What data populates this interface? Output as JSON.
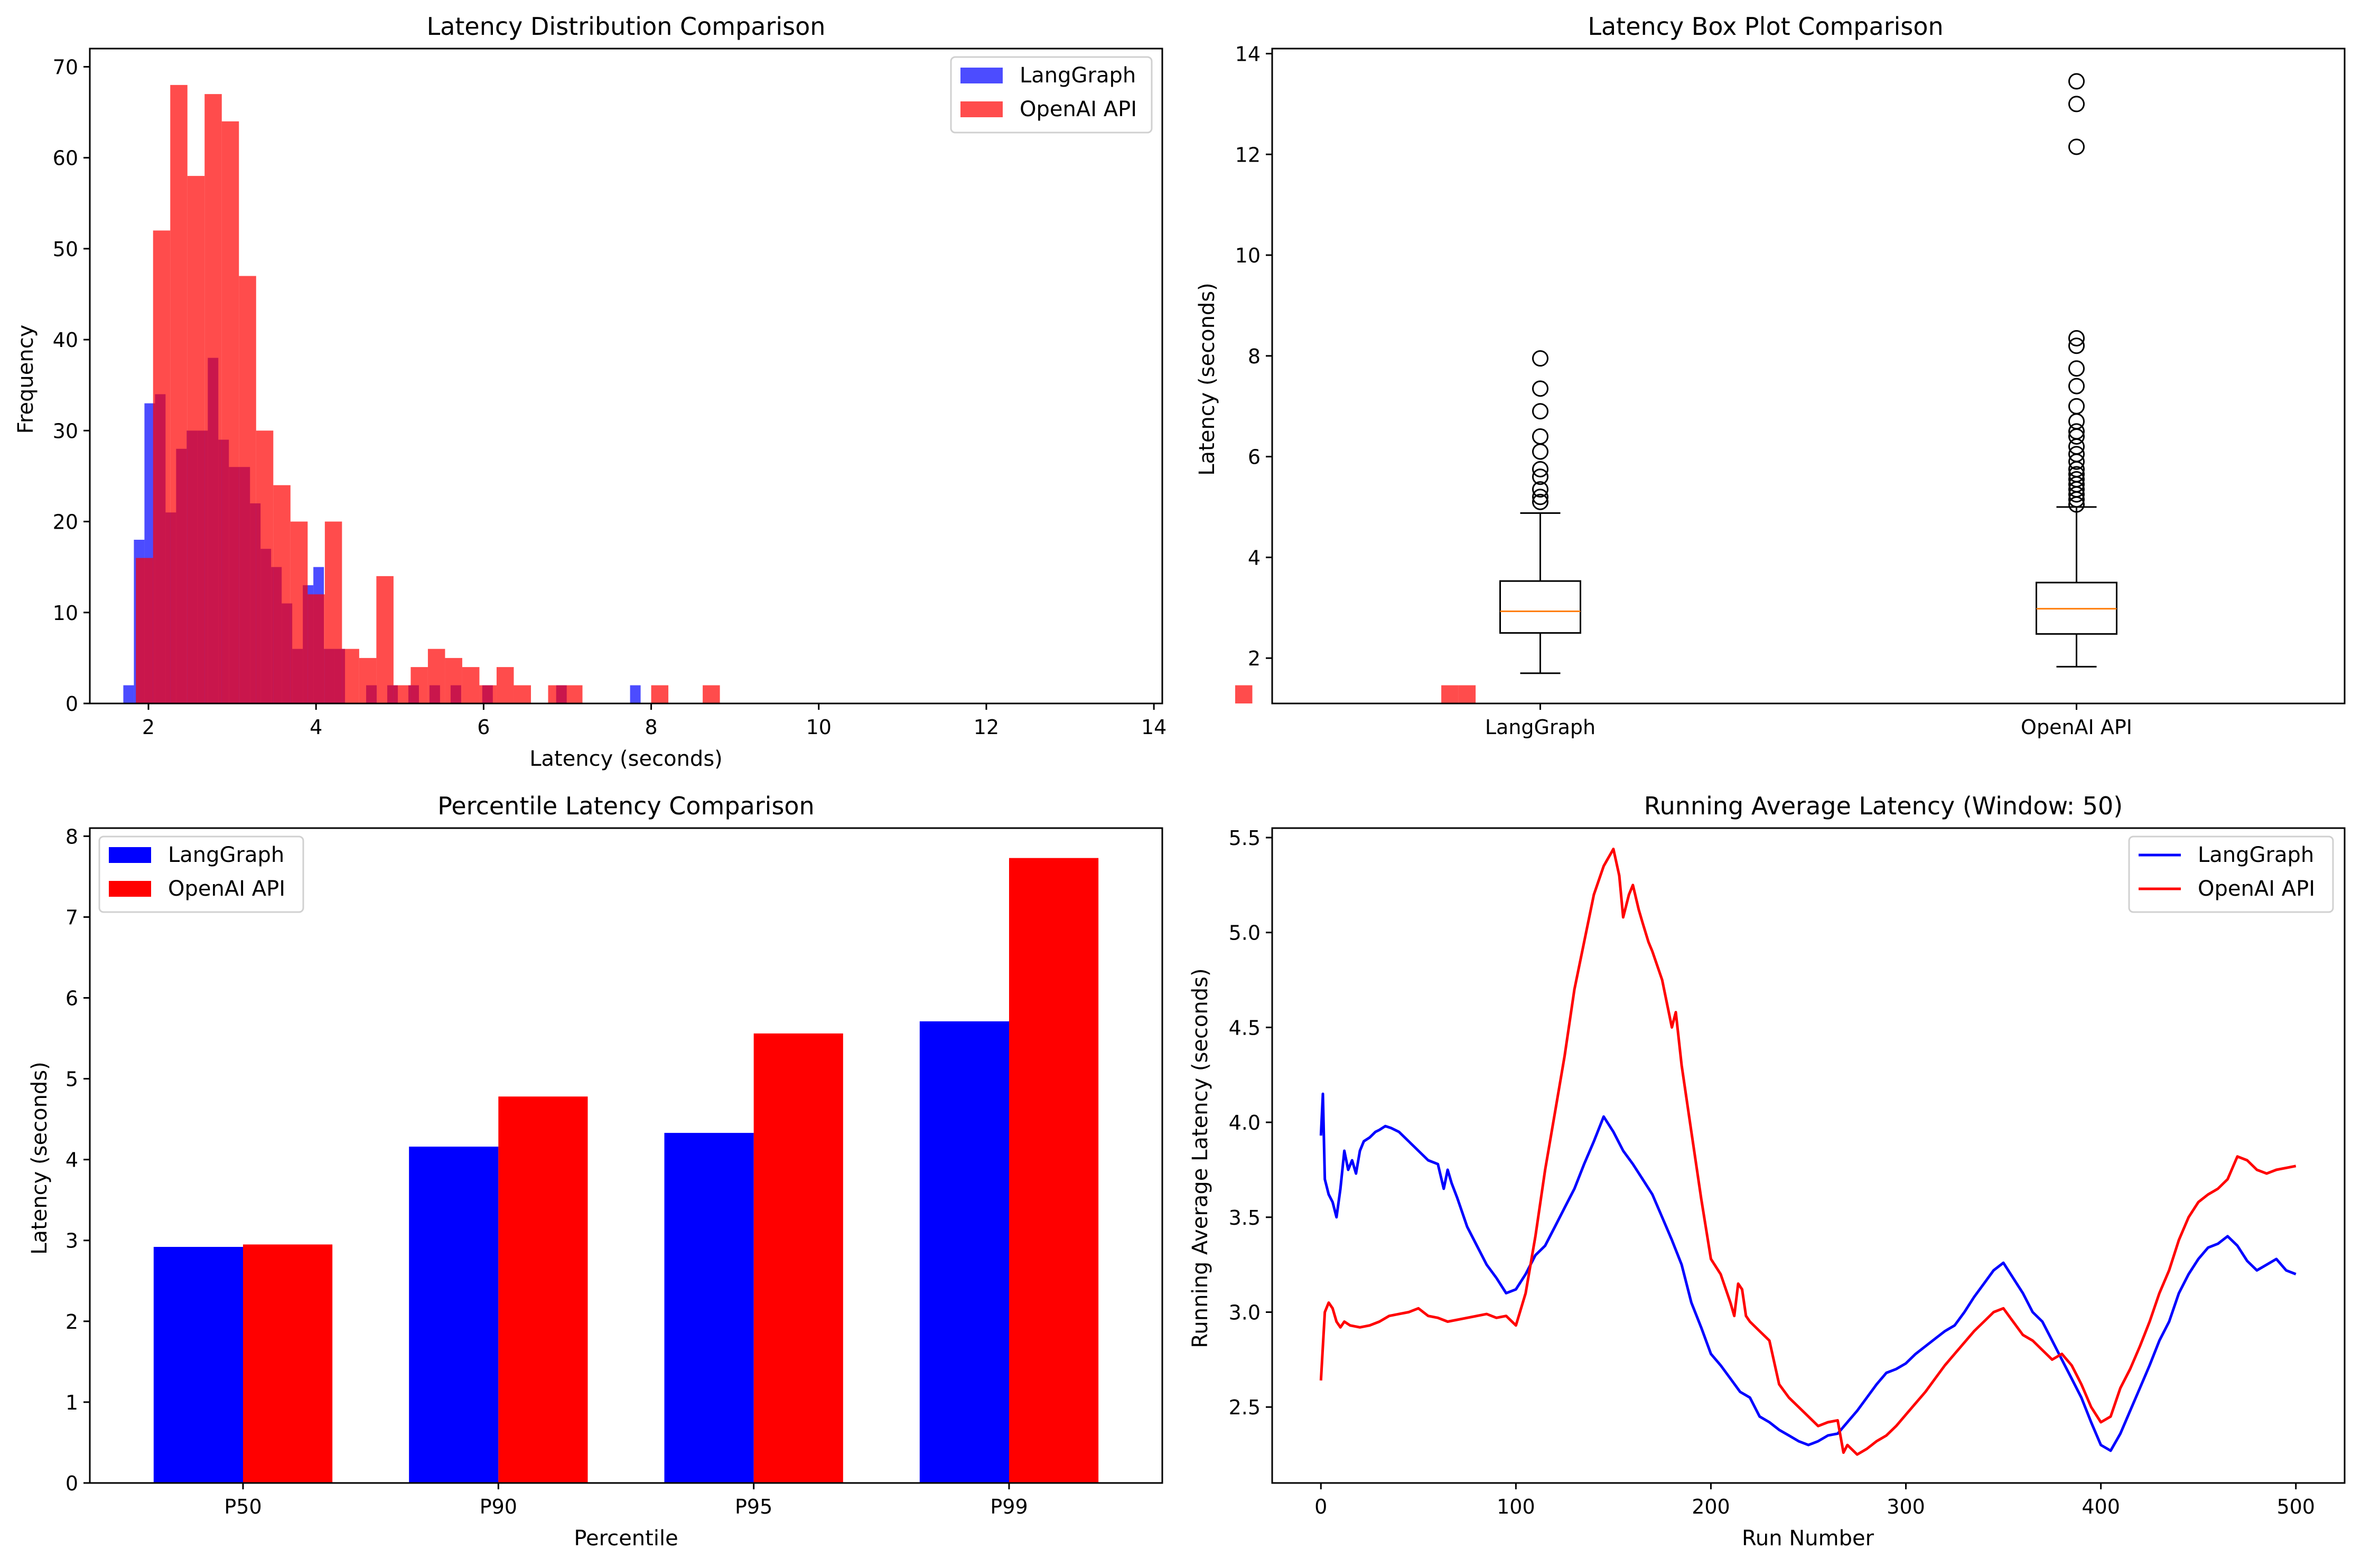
{
  "colors": {
    "langgraph": "#0000ff",
    "openai": "#ff0000",
    "median": "#ff7f0e"
  },
  "chart_data": [
    {
      "id": "hist",
      "type": "bar",
      "title": "Latency Distribution Comparison",
      "xlabel": "Latency (seconds)",
      "ylabel": "Frequency",
      "xlim": [
        1.3,
        14.1
      ],
      "ylim": [
        0,
        72
      ],
      "xticks": [
        2,
        4,
        6,
        8,
        10,
        12,
        14
      ],
      "yticks": [
        0,
        10,
        20,
        30,
        40,
        50,
        60,
        70
      ],
      "legend": "top-right",
      "alpha": 0.7,
      "series": [
        {
          "name": "LangGraph",
          "bin_start": 1.7,
          "bin_width": 0.126,
          "counts": [
            2,
            18,
            33,
            34,
            21,
            28,
            30,
            30,
            38,
            29,
            26,
            26,
            22,
            17,
            15,
            11,
            6,
            13,
            15,
            6,
            6,
            0,
            0,
            2,
            0,
            2,
            0,
            2,
            0,
            2,
            0,
            2,
            0,
            0,
            2,
            0,
            0,
            0,
            0,
            0,
            0,
            2,
            0,
            0,
            0,
            0,
            0,
            0,
            2
          ]
        },
        {
          "name": "OpenAI API",
          "bin_start": 1.85,
          "bin_width": 0.205,
          "counts": [
            16,
            52,
            68,
            58,
            67,
            64,
            47,
            30,
            24,
            20,
            12,
            20,
            6,
            5,
            14,
            2,
            4,
            6,
            5,
            4,
            2,
            4,
            2,
            0,
            2,
            2,
            0,
            0,
            0,
            0,
            2,
            0,
            0,
            2,
            0,
            0,
            0,
            0,
            0,
            0,
            0,
            0,
            0,
            0,
            0,
            0,
            0,
            0,
            0,
            0,
            0,
            0,
            0,
            0,
            0,
            0,
            0,
            0,
            0,
            0,
            0,
            0,
            0,
            0,
            2,
            0,
            0,
            0,
            0,
            0,
            0,
            0,
            0,
            0,
            0,
            0,
            2,
            2,
            0
          ]
        }
      ]
    },
    {
      "id": "box",
      "type": "box",
      "title": "Latency Box Plot Comparison",
      "xlabel": "",
      "ylabel": "Latency (seconds)",
      "ylim": [
        1.1,
        14.1
      ],
      "yticks": [
        2,
        4,
        6,
        8,
        10,
        12,
        14
      ],
      "categories": [
        "LangGraph",
        "OpenAI API"
      ],
      "boxes": [
        {
          "whisker_low": 1.7,
          "q1": 2.5,
          "median": 2.93,
          "q3": 3.53,
          "whisker_high": 4.88,
          "fliers": [
            5.1,
            5.2,
            5.35,
            5.6,
            5.75,
            6.1,
            6.4,
            6.9,
            7.35,
            7.95
          ]
        },
        {
          "whisker_low": 1.83,
          "q1": 2.48,
          "median": 2.98,
          "q3": 3.5,
          "whisker_high": 5.0,
          "fliers": [
            5.05,
            5.15,
            5.25,
            5.35,
            5.45,
            5.55,
            5.65,
            5.75,
            5.9,
            6.05,
            6.2,
            6.4,
            6.5,
            6.7,
            7.0,
            7.4,
            7.75,
            8.2,
            8.35,
            12.15,
            13.0,
            13.45
          ]
        }
      ]
    },
    {
      "id": "pct",
      "type": "bar",
      "title": "Percentile Latency Comparison",
      "xlabel": "Percentile",
      "ylabel": "Latency (seconds)",
      "ylim": [
        0,
        8.1
      ],
      "yticks": [
        0,
        1,
        2,
        3,
        4,
        5,
        6,
        7,
        8
      ],
      "categories": [
        "P50",
        "P90",
        "P95",
        "P99"
      ],
      "legend": "top-left",
      "series": [
        {
          "name": "LangGraph",
          "values": [
            2.92,
            4.16,
            4.33,
            5.71
          ]
        },
        {
          "name": "OpenAI API",
          "values": [
            2.95,
            4.78,
            5.56,
            7.73
          ]
        }
      ]
    },
    {
      "id": "run",
      "type": "line",
      "title": "Running Average Latency (Window: 50)",
      "xlabel": "Run Number",
      "ylabel": "Running Average Latency (seconds)",
      "xlim": [
        -25,
        525
      ],
      "ylim": [
        2.1,
        5.55
      ],
      "xticks": [
        0,
        100,
        200,
        300,
        400,
        500
      ],
      "yticks": [
        2.5,
        3.0,
        3.5,
        4.0,
        4.5,
        5.0,
        5.5
      ],
      "legend": "top-right",
      "series": [
        {
          "name": "LangGraph",
          "x": [
            0,
            1,
            2,
            4,
            6,
            8,
            10,
            12,
            14,
            16,
            18,
            20,
            22,
            25,
            28,
            30,
            33,
            36,
            40,
            45,
            50,
            55,
            60,
            63,
            65,
            67,
            70,
            75,
            80,
            85,
            90,
            95,
            100,
            105,
            110,
            115,
            120,
            125,
            130,
            135,
            140,
            145,
            150,
            155,
            160,
            165,
            170,
            175,
            180,
            185,
            190,
            195,
            200,
            205,
            210,
            215,
            220,
            225,
            230,
            235,
            240,
            245,
            250,
            255,
            260,
            265,
            270,
            275,
            280,
            285,
            290,
            295,
            300,
            305,
            310,
            315,
            320,
            325,
            330,
            335,
            340,
            345,
            350,
            355,
            360,
            365,
            370,
            375,
            380,
            385,
            390,
            395,
            400,
            405,
            410,
            415,
            420,
            425,
            430,
            435,
            440,
            445,
            450,
            455,
            460,
            465,
            470,
            475,
            480,
            485,
            490,
            495,
            500
          ],
          "y": [
            3.93,
            4.15,
            3.7,
            3.62,
            3.58,
            3.5,
            3.65,
            3.85,
            3.75,
            3.8,
            3.73,
            3.85,
            3.9,
            3.92,
            3.95,
            3.96,
            3.98,
            3.97,
            3.95,
            3.9,
            3.85,
            3.8,
            3.78,
            3.65,
            3.75,
            3.68,
            3.6,
            3.45,
            3.35,
            3.25,
            3.18,
            3.1,
            3.12,
            3.2,
            3.3,
            3.35,
            3.45,
            3.55,
            3.65,
            3.78,
            3.9,
            4.03,
            3.95,
            3.85,
            3.78,
            3.7,
            3.62,
            3.5,
            3.38,
            3.25,
            3.05,
            2.92,
            2.78,
            2.72,
            2.65,
            2.58,
            2.55,
            2.45,
            2.42,
            2.38,
            2.35,
            2.32,
            2.3,
            2.32,
            2.35,
            2.36,
            2.42,
            2.48,
            2.55,
            2.62,
            2.68,
            2.7,
            2.73,
            2.78,
            2.82,
            2.86,
            2.9,
            2.93,
            3.0,
            3.08,
            3.15,
            3.22,
            3.26,
            3.18,
            3.1,
            3.0,
            2.95,
            2.85,
            2.75,
            2.65,
            2.55,
            2.42,
            2.3,
            2.27,
            2.36,
            2.48,
            2.6,
            2.72,
            2.85,
            2.95,
            3.1,
            3.2,
            3.28,
            3.34,
            3.36,
            3.4,
            3.35,
            3.27,
            3.22,
            3.25,
            3.28,
            3.22,
            3.2
          ]
        },
        {
          "name": "OpenAI API",
          "x": [
            0,
            2,
            4,
            6,
            8,
            10,
            12,
            15,
            20,
            25,
            30,
            35,
            40,
            45,
            50,
            55,
            60,
            65,
            70,
            75,
            80,
            85,
            90,
            95,
            100,
            105,
            110,
            115,
            120,
            125,
            130,
            135,
            140,
            145,
            150,
            153,
            155,
            158,
            160,
            163,
            165,
            168,
            170,
            175,
            180,
            182,
            185,
            190,
            195,
            200,
            205,
            210,
            212,
            214,
            216,
            218,
            220,
            225,
            230,
            235,
            240,
            245,
            250,
            255,
            260,
            265,
            268,
            270,
            275,
            280,
            285,
            290,
            295,
            300,
            305,
            310,
            315,
            320,
            325,
            330,
            335,
            340,
            345,
            350,
            355,
            360,
            365,
            370,
            375,
            380,
            385,
            390,
            395,
            400,
            405,
            410,
            415,
            420,
            425,
            430,
            435,
            440,
            445,
            450,
            455,
            460,
            465,
            470,
            475,
            480,
            485,
            490,
            495,
            500
          ],
          "y": [
            2.64,
            3.0,
            3.05,
            3.02,
            2.95,
            2.92,
            2.95,
            2.93,
            2.92,
            2.93,
            2.95,
            2.98,
            2.99,
            3.0,
            3.02,
            2.98,
            2.97,
            2.95,
            2.96,
            2.97,
            2.98,
            2.99,
            2.97,
            2.98,
            2.93,
            3.1,
            3.4,
            3.75,
            4.05,
            4.35,
            4.7,
            4.95,
            5.2,
            5.35,
            5.44,
            5.3,
            5.08,
            5.2,
            5.25,
            5.12,
            5.05,
            4.95,
            4.9,
            4.75,
            4.5,
            4.58,
            4.3,
            3.95,
            3.6,
            3.28,
            3.2,
            3.05,
            2.98,
            3.15,
            3.12,
            2.98,
            2.95,
            2.9,
            2.85,
            2.62,
            2.55,
            2.5,
            2.45,
            2.4,
            2.42,
            2.43,
            2.26,
            2.3,
            2.25,
            2.28,
            2.32,
            2.35,
            2.4,
            2.46,
            2.52,
            2.58,
            2.65,
            2.72,
            2.78,
            2.84,
            2.9,
            2.95,
            3.0,
            3.02,
            2.95,
            2.88,
            2.85,
            2.8,
            2.75,
            2.78,
            2.72,
            2.62,
            2.5,
            2.42,
            2.45,
            2.6,
            2.7,
            2.82,
            2.95,
            3.1,
            3.22,
            3.38,
            3.5,
            3.58,
            3.62,
            3.65,
            3.7,
            3.82,
            3.8,
            3.75,
            3.73,
            3.75,
            3.76,
            3.77
          ]
        }
      ]
    }
  ]
}
